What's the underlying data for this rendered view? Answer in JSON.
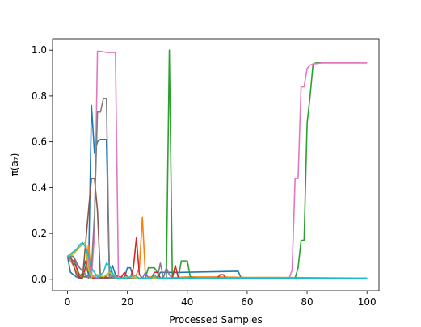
{
  "chart_data": {
    "type": "line",
    "title": "",
    "xlabel": "Processed Samples",
    "ylabel": "π(a₇)",
    "xlim": [
      -5,
      104
    ],
    "ylim": [
      -0.05,
      1.05
    ],
    "xticks": [
      0,
      20,
      40,
      60,
      80,
      100
    ],
    "yticks": [
      0.0,
      0.2,
      0.4,
      0.6,
      0.8,
      1.0
    ],
    "xtick_labels": [
      "0",
      "20",
      "40",
      "60",
      "80",
      "100"
    ],
    "ytick_labels": [
      "0.0",
      "0.2",
      "0.4",
      "0.6",
      "0.8",
      "1.0"
    ],
    "grid": false,
    "legend": "none",
    "series": [
      {
        "color": "#1f77b4",
        "points": [
          [
            0,
            0.1
          ],
          [
            1,
            0.03
          ],
          [
            2,
            0.02
          ],
          [
            3,
            0.01
          ],
          [
            4,
            0.005
          ],
          [
            5,
            0.03
          ],
          [
            6,
            0.08
          ],
          [
            7,
            0.02
          ],
          [
            8,
            0.76
          ],
          [
            9,
            0.55
          ],
          [
            10,
            0.6
          ],
          [
            11,
            0.61
          ],
          [
            12,
            0.61
          ],
          [
            13,
            0.61
          ],
          [
            14,
            0.01
          ],
          [
            15,
            0.06
          ],
          [
            16,
            0.02
          ],
          [
            17,
            0.005
          ],
          [
            19,
            0.005
          ],
          [
            20,
            0.05
          ],
          [
            21,
            0.05
          ],
          [
            22,
            0.005
          ],
          [
            30,
            0.005
          ],
          [
            31,
            0.03
          ],
          [
            32,
            0.03
          ],
          [
            38,
            0.03
          ],
          [
            50,
            0.033
          ],
          [
            57,
            0.035
          ],
          [
            58,
            0.005
          ],
          [
            100,
            0.005
          ]
        ]
      },
      {
        "color": "#ff7f0e",
        "points": [
          [
            0,
            0.1
          ],
          [
            1,
            0.08
          ],
          [
            2,
            0.06
          ],
          [
            3,
            0.03
          ],
          [
            4,
            0.01
          ],
          [
            6,
            0.01
          ],
          [
            7,
            0.15
          ],
          [
            8,
            0.02
          ],
          [
            9,
            0.01
          ],
          [
            10,
            0.02
          ],
          [
            12,
            0.01
          ],
          [
            14,
            0.02
          ],
          [
            16,
            0.005
          ],
          [
            18,
            0.01
          ],
          [
            20,
            0.005
          ],
          [
            22,
            0.01
          ],
          [
            23,
            0.02
          ],
          [
            24,
            0.05
          ],
          [
            25,
            0.27
          ],
          [
            26,
            0.02
          ],
          [
            27,
            0.01
          ],
          [
            28,
            0.01
          ],
          [
            30,
            0.01
          ],
          [
            32,
            0.005
          ],
          [
            40,
            0.01
          ],
          [
            50,
            0.01
          ],
          [
            60,
            0.008
          ],
          [
            70,
            0.008
          ],
          [
            100,
            0.005
          ]
        ]
      },
      {
        "color": "#2ca02c",
        "points": [
          [
            0,
            0.1
          ],
          [
            2,
            0.08
          ],
          [
            4,
            0.02
          ],
          [
            6,
            0.01
          ],
          [
            10,
            0.005
          ],
          [
            20,
            0.005
          ],
          [
            26,
            0.005
          ],
          [
            27,
            0.05
          ],
          [
            29,
            0.05
          ],
          [
            30,
            0.03
          ],
          [
            31,
            0.005
          ],
          [
            33,
            0.005
          ],
          [
            34,
            1.0
          ],
          [
            35,
            0.005
          ],
          [
            37,
            0.005
          ],
          [
            38,
            0.08
          ],
          [
            40,
            0.08
          ],
          [
            41,
            0.01
          ],
          [
            43,
            0.005
          ],
          [
            76,
            0.005
          ],
          [
            77,
            0.05
          ],
          [
            78,
            0.17
          ],
          [
            79,
            0.17
          ],
          [
            80,
            0.68
          ],
          [
            81,
            0.8
          ],
          [
            82,
            0.94
          ],
          [
            83,
            0.945
          ],
          [
            100,
            0.945
          ]
        ]
      },
      {
        "color": "#d62728",
        "points": [
          [
            0,
            0.1
          ],
          [
            2,
            0.1
          ],
          [
            3,
            0.05
          ],
          [
            4,
            0.01
          ],
          [
            5,
            0.005
          ],
          [
            7,
            0.1
          ],
          [
            8,
            0.005
          ],
          [
            10,
            0.005
          ],
          [
            12,
            0.01
          ],
          [
            15,
            0.005
          ],
          [
            18,
            0.01
          ],
          [
            19,
            0.03
          ],
          [
            20,
            0.01
          ],
          [
            21,
            0.005
          ],
          [
            22,
            0.05
          ],
          [
            23,
            0.18
          ],
          [
            24,
            0.02
          ],
          [
            25,
            0.005
          ],
          [
            28,
            0.005
          ],
          [
            29,
            0.03
          ],
          [
            30,
            0.03
          ],
          [
            31,
            0.005
          ],
          [
            35,
            0.005
          ],
          [
            36,
            0.06
          ],
          [
            37,
            0.005
          ],
          [
            50,
            0.005
          ],
          [
            51,
            0.02
          ],
          [
            52,
            0.02
          ],
          [
            53,
            0.005
          ],
          [
            100,
            0.005
          ]
        ]
      },
      {
        "color": "#9467bd",
        "points": [
          [
            0,
            0.1
          ],
          [
            2,
            0.08
          ],
          [
            4,
            0.05
          ],
          [
            6,
            0.02
          ],
          [
            8,
            0.01
          ],
          [
            10,
            0.005
          ],
          [
            20,
            0.005
          ],
          [
            25,
            0.005
          ],
          [
            26,
            0.03
          ],
          [
            27,
            0.005
          ],
          [
            32,
            0.005
          ],
          [
            33,
            0.05
          ],
          [
            34,
            0.02
          ],
          [
            35,
            0.005
          ],
          [
            100,
            0.005
          ]
        ]
      },
      {
        "color": "#8c564b",
        "points": [
          [
            0,
            0.1
          ],
          [
            1,
            0.1
          ],
          [
            2,
            0.06
          ],
          [
            3,
            0.02
          ],
          [
            4,
            0.005
          ],
          [
            5,
            0.005
          ],
          [
            6,
            0.15
          ],
          [
            7,
            0.3
          ],
          [
            8,
            0.44
          ],
          [
            9,
            0.44
          ],
          [
            10,
            0.3
          ],
          [
            11,
            0.005
          ],
          [
            14,
            0.005
          ],
          [
            16,
            0.02
          ],
          [
            18,
            0.005
          ],
          [
            100,
            0.005
          ]
        ]
      },
      {
        "color": "#e377c2",
        "points": [
          [
            0,
            0.1
          ],
          [
            2,
            0.12
          ],
          [
            4,
            0.14
          ],
          [
            6,
            0.16
          ],
          [
            8,
            0.005
          ],
          [
            9,
            0.2
          ],
          [
            10,
            0.995
          ],
          [
            11,
            0.995
          ],
          [
            13,
            0.99
          ],
          [
            16,
            0.99
          ],
          [
            17,
            0.005
          ],
          [
            20,
            0.005
          ],
          [
            60,
            0.005
          ],
          [
            74,
            0.005
          ],
          [
            75,
            0.04
          ],
          [
            76,
            0.44
          ],
          [
            77,
            0.44
          ],
          [
            78,
            0.84
          ],
          [
            79,
            0.84
          ],
          [
            80,
            0.92
          ],
          [
            81,
            0.935
          ],
          [
            82,
            0.94
          ],
          [
            85,
            0.945
          ],
          [
            100,
            0.945
          ]
        ]
      },
      {
        "color": "#7f7f7f",
        "points": [
          [
            0,
            0.1
          ],
          [
            2,
            0.1
          ],
          [
            4,
            0.05
          ],
          [
            6,
            0.02
          ],
          [
            7,
            0.005
          ],
          [
            8,
            0.05
          ],
          [
            9,
            0.28
          ],
          [
            10,
            0.73
          ],
          [
            11,
            0.73
          ],
          [
            12,
            0.79
          ],
          [
            13,
            0.79
          ],
          [
            14,
            0.005
          ],
          [
            16,
            0.005
          ],
          [
            20,
            0.005
          ],
          [
            30,
            0.005
          ],
          [
            31,
            0.07
          ],
          [
            32,
            0.005
          ],
          [
            100,
            0.005
          ]
        ]
      },
      {
        "color": "#bcbd22",
        "points": [
          [
            0,
            0.1
          ],
          [
            2,
            0.11
          ],
          [
            4,
            0.14
          ],
          [
            6,
            0.16
          ],
          [
            7,
            0.04
          ],
          [
            8,
            0.01
          ],
          [
            10,
            0.02
          ],
          [
            12,
            0.01
          ],
          [
            14,
            0.03
          ],
          [
            16,
            0.01
          ],
          [
            18,
            0.005
          ],
          [
            20,
            0.01
          ],
          [
            24,
            0.005
          ],
          [
            30,
            0.005
          ],
          [
            32,
            0.005
          ],
          [
            50,
            0.005
          ],
          [
            70,
            0.005
          ],
          [
            100,
            0.005
          ]
        ]
      },
      {
        "color": "#17becf",
        "points": [
          [
            0,
            0.1
          ],
          [
            1,
            0.11
          ],
          [
            2,
            0.12
          ],
          [
            3,
            0.13
          ],
          [
            4,
            0.15
          ],
          [
            5,
            0.16
          ],
          [
            6,
            0.14
          ],
          [
            7,
            0.1
          ],
          [
            8,
            0.05
          ],
          [
            9,
            0.03
          ],
          [
            10,
            0.01
          ],
          [
            12,
            0.03
          ],
          [
            13,
            0.07
          ],
          [
            14,
            0.06
          ],
          [
            15,
            0.03
          ],
          [
            16,
            0.005
          ],
          [
            20,
            0.005
          ],
          [
            22,
            0.02
          ],
          [
            24,
            0.005
          ],
          [
            28,
            0.005
          ],
          [
            29,
            0.02
          ],
          [
            30,
            0.005
          ],
          [
            100,
            0.005
          ]
        ]
      }
    ]
  }
}
